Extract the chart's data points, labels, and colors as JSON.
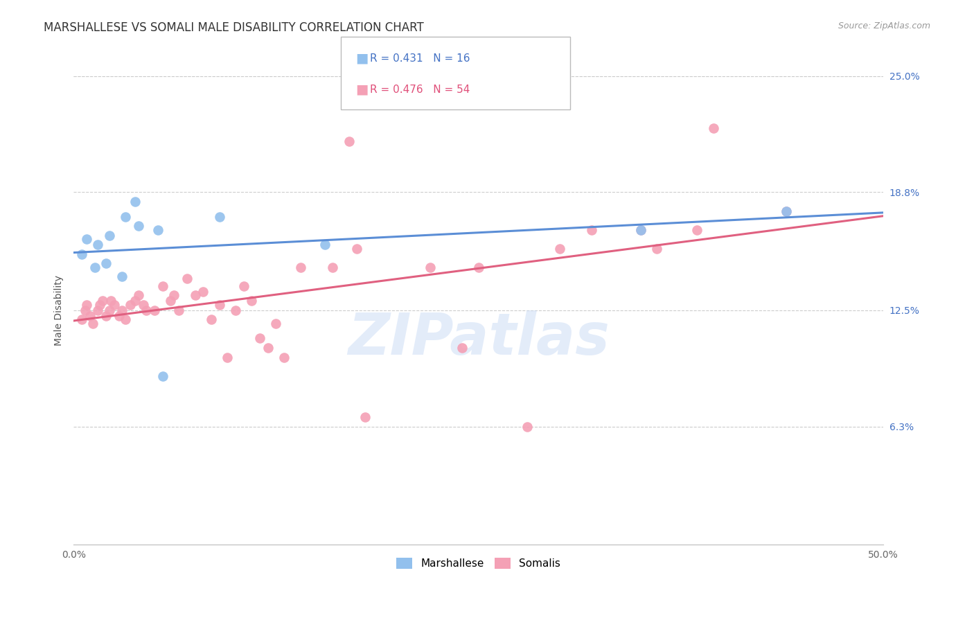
{
  "title": "MARSHALLESE VS SOMALI MALE DISABILITY CORRELATION CHART",
  "source": "Source: ZipAtlas.com",
  "ylabel": "Male Disability",
  "watermark": "ZIPatlas",
  "xlim": [
    0.0,
    0.5
  ],
  "ylim": [
    0.0,
    0.25
  ],
  "xtick_positions": [
    0.0,
    0.1,
    0.2,
    0.3,
    0.4,
    0.5
  ],
  "xtick_labels": [
    "0.0%",
    "",
    "",
    "",
    "",
    "50.0%"
  ],
  "ytick_labels_right": [
    "25.0%",
    "18.8%",
    "12.5%",
    "6.3%"
  ],
  "ytick_vals_right": [
    0.25,
    0.188,
    0.125,
    0.063
  ],
  "marshallese_R": 0.431,
  "marshallese_N": 16,
  "somali_R": 0.476,
  "somali_N": 54,
  "marshallese_color": "#92C0ED",
  "somali_color": "#F4A0B5",
  "marshallese_line_color": "#5B8ED6",
  "somali_line_color": "#E06080",
  "legend_blue_text_color": "#4472C4",
  "legend_pink_text_color": "#E0507A",
  "title_fontsize": 12,
  "axis_label_fontsize": 10,
  "tick_fontsize": 10,
  "marshallese_x": [
    0.005,
    0.008,
    0.013,
    0.015,
    0.02,
    0.022,
    0.03,
    0.032,
    0.038,
    0.04,
    0.052,
    0.055,
    0.09,
    0.155,
    0.35,
    0.44
  ],
  "marshallese_y": [
    0.155,
    0.163,
    0.148,
    0.16,
    0.15,
    0.165,
    0.143,
    0.175,
    0.183,
    0.17,
    0.168,
    0.09,
    0.175,
    0.16,
    0.168,
    0.178
  ],
  "somali_x": [
    0.005,
    0.007,
    0.008,
    0.01,
    0.012,
    0.015,
    0.016,
    0.018,
    0.02,
    0.022,
    0.023,
    0.025,
    0.028,
    0.03,
    0.032,
    0.035,
    0.038,
    0.04,
    0.043,
    0.045,
    0.05,
    0.055,
    0.06,
    0.062,
    0.065,
    0.07,
    0.075,
    0.08,
    0.085,
    0.09,
    0.095,
    0.1,
    0.105,
    0.11,
    0.115,
    0.12,
    0.125,
    0.13,
    0.14,
    0.16,
    0.17,
    0.175,
    0.18,
    0.22,
    0.24,
    0.25,
    0.28,
    0.3,
    0.32,
    0.35,
    0.36,
    0.385,
    0.395,
    0.44
  ],
  "somali_y": [
    0.12,
    0.125,
    0.128,
    0.122,
    0.118,
    0.125,
    0.128,
    0.13,
    0.122,
    0.125,
    0.13,
    0.128,
    0.122,
    0.125,
    0.12,
    0.128,
    0.13,
    0.133,
    0.128,
    0.125,
    0.125,
    0.138,
    0.13,
    0.133,
    0.125,
    0.142,
    0.133,
    0.135,
    0.12,
    0.128,
    0.1,
    0.125,
    0.138,
    0.13,
    0.11,
    0.105,
    0.118,
    0.1,
    0.148,
    0.148,
    0.215,
    0.158,
    0.068,
    0.148,
    0.105,
    0.148,
    0.063,
    0.158,
    0.168,
    0.168,
    0.158,
    0.168,
    0.222,
    0.178
  ]
}
